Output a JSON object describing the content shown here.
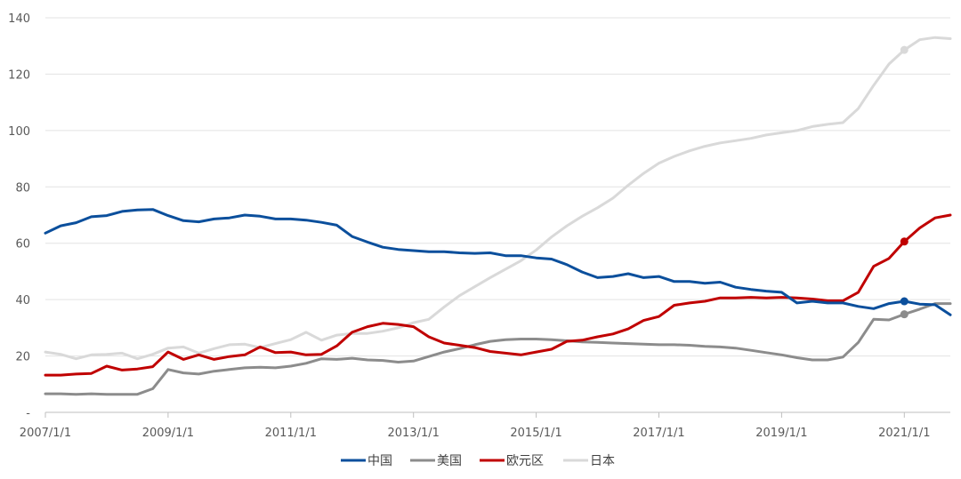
{
  "chart_data": {
    "type": "line",
    "title": "",
    "xlabel": "",
    "ylabel": "",
    "ylim": [
      0,
      140
    ],
    "yticks": [
      0,
      20,
      40,
      60,
      80,
      100,
      120,
      140
    ],
    "ytick_labels": [
      "-",
      "20",
      "40",
      "60",
      "80",
      "100",
      "120",
      "140"
    ],
    "xlim": [
      2007.0,
      2021.75
    ],
    "xticks": [
      2007,
      2009,
      2011,
      2013,
      2015,
      2017,
      2019,
      2021
    ],
    "xtick_labels": [
      "2007/1/1",
      "2009/1/1",
      "2011/1/1",
      "2013/1/1",
      "2015/1/1",
      "2017/1/1",
      "2019/1/1",
      "2021/1/1"
    ],
    "grid": "horizontal",
    "legend_position": "bottom",
    "series": [
      {
        "name": "中国",
        "color": "#0b4f9c",
        "x": [
          2007.0,
          2007.25,
          2007.5,
          2007.75,
          2008.0,
          2008.25,
          2008.5,
          2008.75,
          2009.0,
          2009.25,
          2009.5,
          2009.75,
          2010.0,
          2010.25,
          2010.5,
          2010.75,
          2011.0,
          2011.25,
          2011.5,
          2011.75,
          2012.0,
          2012.25,
          2012.5,
          2012.75,
          2013.0,
          2013.25,
          2013.5,
          2013.75,
          2014.0,
          2014.25,
          2014.5,
          2014.75,
          2015.0,
          2015.25,
          2015.5,
          2015.75,
          2016.0,
          2016.25,
          2016.5,
          2016.75,
          2017.0,
          2017.25,
          2017.5,
          2017.75,
          2018.0,
          2018.25,
          2018.5,
          2018.75,
          2019.0,
          2019.25,
          2019.5,
          2019.75,
          2020.0,
          2020.25,
          2020.5,
          2020.75,
          2021.0,
          2021.25,
          2021.5,
          2021.75
        ],
        "y": [
          63.6,
          66.2,
          67.3,
          69.4,
          69.8,
          71.3,
          71.8,
          72.0,
          69.8,
          68.0,
          67.6,
          68.6,
          69.0,
          70.0,
          69.6,
          68.6,
          68.6,
          68.2,
          67.4,
          66.4,
          62.4,
          60.4,
          58.6,
          57.8,
          57.4,
          57.0,
          57.0,
          56.6,
          56.4,
          56.6,
          55.6,
          55.6,
          54.8,
          54.4,
          52.4,
          49.8,
          47.8,
          48.2,
          49.2,
          47.8,
          48.2,
          46.4,
          46.4,
          45.8,
          46.2,
          44.4,
          43.6,
          43.0,
          42.6,
          38.8,
          39.4,
          38.8,
          38.8,
          37.6,
          36.8,
          38.6,
          39.4,
          38.4,
          38.2,
          34.6
        ],
        "markers": [
          {
            "x": 2021.0,
            "y": 39.4
          }
        ]
      },
      {
        "name": "美国",
        "color": "#8c8c8c",
        "x": [
          2007.0,
          2007.25,
          2007.5,
          2007.75,
          2008.0,
          2008.25,
          2008.5,
          2008.75,
          2009.0,
          2009.25,
          2009.5,
          2009.75,
          2010.0,
          2010.25,
          2010.5,
          2010.75,
          2011.0,
          2011.25,
          2011.5,
          2011.75,
          2012.0,
          2012.25,
          2012.5,
          2012.75,
          2013.0,
          2013.25,
          2013.5,
          2013.75,
          2014.0,
          2014.25,
          2014.5,
          2014.75,
          2015.0,
          2015.25,
          2015.5,
          2015.75,
          2016.0,
          2016.25,
          2016.5,
          2016.75,
          2017.0,
          2017.25,
          2017.5,
          2017.75,
          2018.0,
          2018.25,
          2018.5,
          2018.75,
          2019.0,
          2019.25,
          2019.5,
          2019.75,
          2020.0,
          2020.25,
          2020.5,
          2020.75,
          2021.0,
          2021.25,
          2021.5,
          2021.75
        ],
        "y": [
          6.6,
          6.6,
          6.4,
          6.6,
          6.4,
          6.4,
          6.4,
          8.4,
          15.2,
          14.0,
          13.6,
          14.6,
          15.2,
          15.8,
          16.0,
          15.8,
          16.4,
          17.4,
          19.0,
          18.8,
          19.2,
          18.6,
          18.4,
          17.8,
          18.2,
          19.8,
          21.4,
          22.6,
          24.0,
          25.2,
          25.8,
          26.0,
          26.0,
          25.8,
          25.4,
          25.0,
          24.8,
          24.6,
          24.4,
          24.2,
          24.0,
          24.0,
          23.8,
          23.4,
          23.2,
          22.8,
          22.0,
          21.2,
          20.4,
          19.4,
          18.6,
          18.6,
          19.6,
          24.8,
          33.0,
          32.8,
          34.8,
          36.6,
          38.6,
          38.6
        ],
        "markers": [
          {
            "x": 2021.0,
            "y": 34.8
          }
        ]
      },
      {
        "name": "欧元区",
        "color": "#c00000",
        "x": [
          2007.0,
          2007.25,
          2007.5,
          2007.75,
          2008.0,
          2008.25,
          2008.5,
          2008.75,
          2009.0,
          2009.25,
          2009.5,
          2009.75,
          2010.0,
          2010.25,
          2010.5,
          2010.75,
          2011.0,
          2011.25,
          2011.5,
          2011.75,
          2012.0,
          2012.25,
          2012.5,
          2012.75,
          2013.0,
          2013.25,
          2013.5,
          2013.75,
          2014.0,
          2014.25,
          2014.5,
          2014.75,
          2015.0,
          2015.25,
          2015.5,
          2015.75,
          2016.0,
          2016.25,
          2016.5,
          2016.75,
          2017.0,
          2017.25,
          2017.5,
          2017.75,
          2018.0,
          2018.25,
          2018.5,
          2018.75,
          2019.0,
          2019.25,
          2019.5,
          2019.75,
          2020.0,
          2020.25,
          2020.5,
          2020.75,
          2021.0,
          2021.25,
          2021.5,
          2021.75
        ],
        "y": [
          13.2,
          13.2,
          13.6,
          13.8,
          16.4,
          15.0,
          15.4,
          16.2,
          21.4,
          18.8,
          20.4,
          18.8,
          19.8,
          20.4,
          23.2,
          21.2,
          21.4,
          20.4,
          20.6,
          23.6,
          28.4,
          30.4,
          31.6,
          31.2,
          30.4,
          26.8,
          24.6,
          23.8,
          23.0,
          21.6,
          21.0,
          20.4,
          21.4,
          22.4,
          25.2,
          25.6,
          26.8,
          27.8,
          29.6,
          32.6,
          34.0,
          38.0,
          38.8,
          39.4,
          40.6,
          40.6,
          40.8,
          40.6,
          40.8,
          40.6,
          40.2,
          39.6,
          39.6,
          42.6,
          51.8,
          54.6,
          60.6,
          65.4,
          69.0,
          70.0
        ],
        "markers": [
          {
            "x": 2021.0,
            "y": 60.6
          }
        ]
      },
      {
        "name": "日本",
        "color": "#d9d9d9",
        "x": [
          2007.0,
          2007.25,
          2007.5,
          2007.75,
          2008.0,
          2008.25,
          2008.5,
          2008.75,
          2009.0,
          2009.25,
          2009.5,
          2009.75,
          2010.0,
          2010.25,
          2010.5,
          2010.75,
          2011.0,
          2011.25,
          2011.5,
          2011.75,
          2012.0,
          2012.25,
          2012.5,
          2012.75,
          2013.0,
          2013.25,
          2013.5,
          2013.75,
          2014.0,
          2014.25,
          2014.5,
          2014.75,
          2015.0,
          2015.25,
          2015.5,
          2015.75,
          2016.0,
          2016.25,
          2016.5,
          2016.75,
          2017.0,
          2017.25,
          2017.5,
          2017.75,
          2018.0,
          2018.25,
          2018.5,
          2018.75,
          2019.0,
          2019.25,
          2019.5,
          2019.75,
          2020.0,
          2020.25,
          2020.5,
          2020.75,
          2021.0,
          2021.25,
          2021.5,
          2021.75
        ],
        "y": [
          21.4,
          20.6,
          19.0,
          20.4,
          20.6,
          21.0,
          19.0,
          20.6,
          22.8,
          23.2,
          21.0,
          22.6,
          24.0,
          24.2,
          23.0,
          24.4,
          25.8,
          28.4,
          25.6,
          27.4,
          28.0,
          28.0,
          28.8,
          30.0,
          31.8,
          33.0,
          37.4,
          41.4,
          44.6,
          47.8,
          50.8,
          53.8,
          57.6,
          62.2,
          66.2,
          69.6,
          72.6,
          76.0,
          80.6,
          84.8,
          88.4,
          90.8,
          92.8,
          94.4,
          95.6,
          96.4,
          97.2,
          98.4,
          99.2,
          100.0,
          101.4,
          102.2,
          102.8,
          107.8,
          116.0,
          123.6,
          128.6,
          132.2,
          133.0,
          132.6
        ],
        "markers": [
          {
            "x": 2021.0,
            "y": 128.6
          }
        ]
      }
    ]
  }
}
